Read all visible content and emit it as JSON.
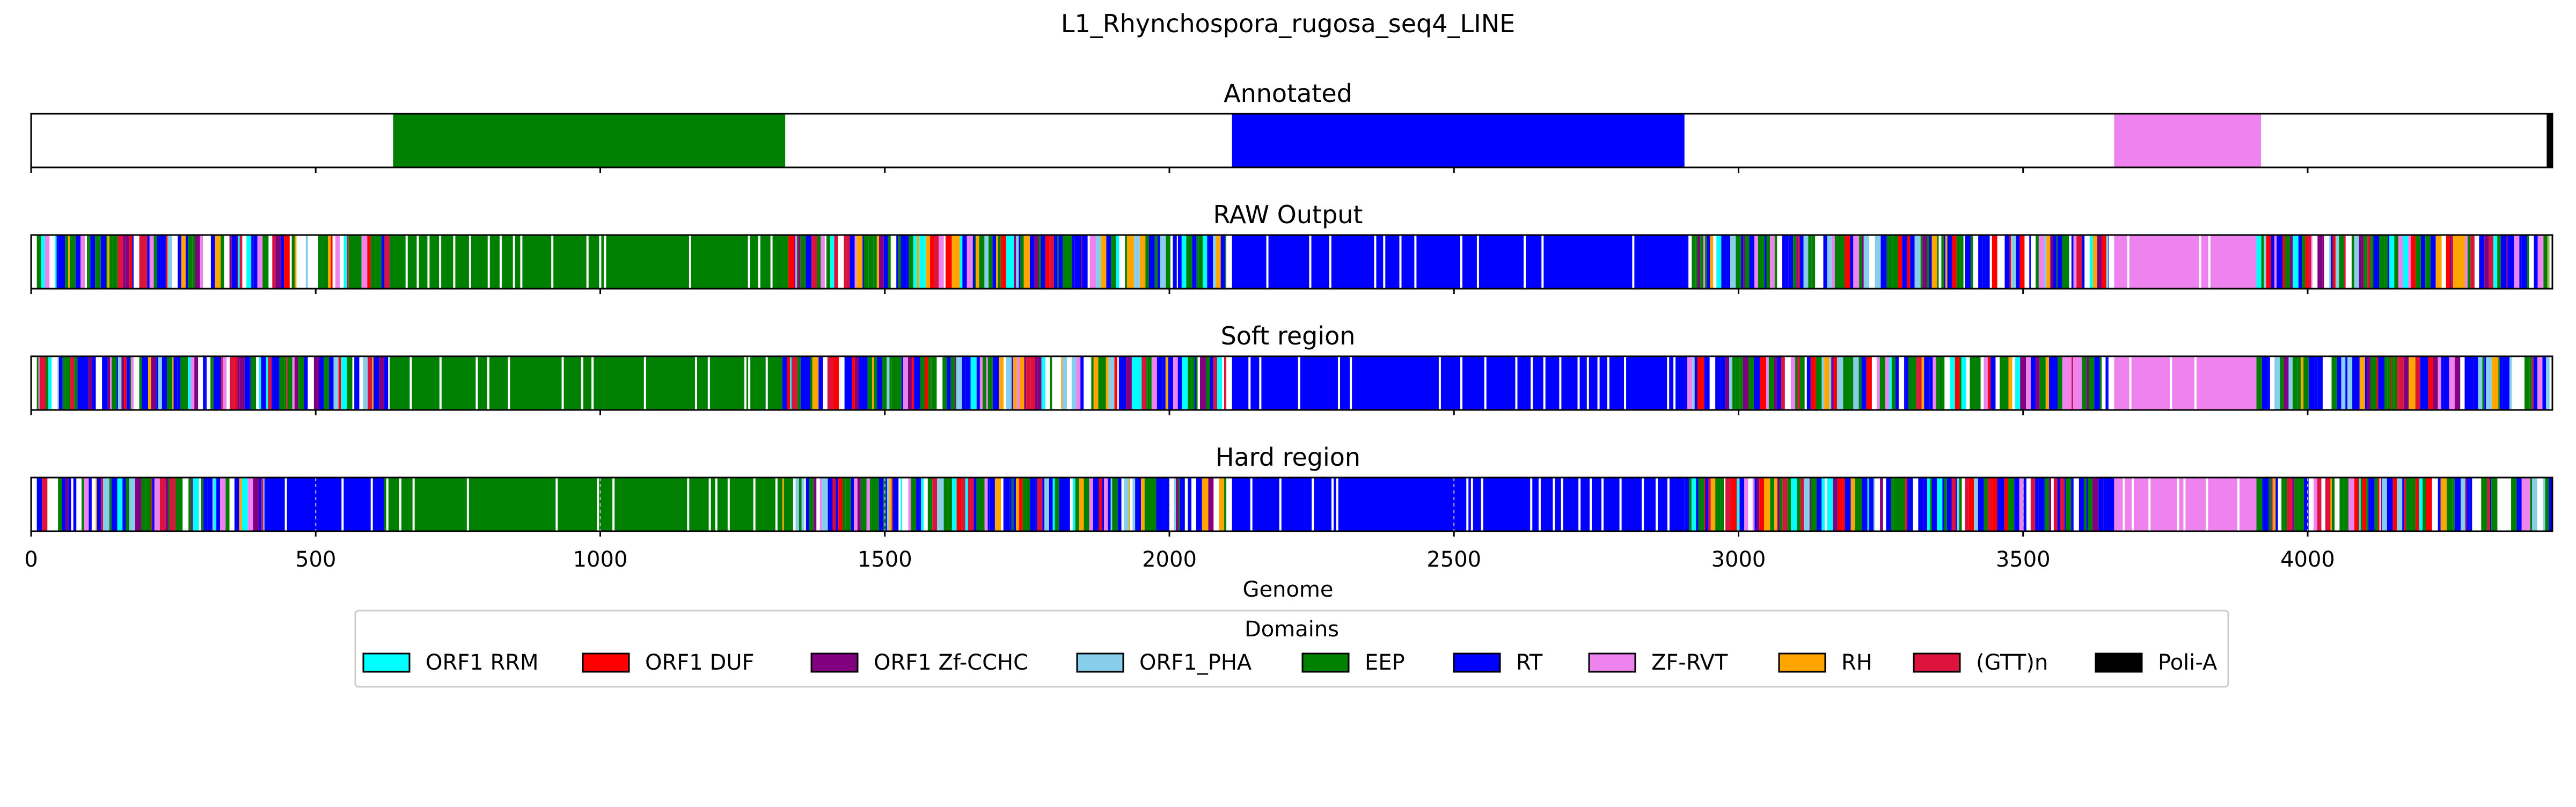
{
  "chart_data": {
    "type": "bar",
    "title": "L1_Rhynchospora_rugosa_seq4_LINE",
    "xlabel": "Genome",
    "xlim": [
      0,
      4430
    ],
    "xticks": [
      0,
      500,
      1000,
      1500,
      2000,
      2500,
      3000,
      3500,
      4000
    ],
    "xtick_labels": [
      "0",
      "500",
      "1000",
      "1500",
      "2000",
      "2500",
      "3000",
      "3500",
      "4000"
    ],
    "panels": [
      {
        "name": "Annotated",
        "segments": [
          {
            "domain": "EEP",
            "start": 636,
            "end": 1325
          },
          {
            "domain": "RT",
            "start": 2110,
            "end": 2905
          },
          {
            "domain": "ZF-RVT",
            "start": 3660,
            "end": 3918
          },
          {
            "domain": "Poli-A",
            "start": 4420,
            "end": 4430
          }
        ]
      },
      {
        "name": "RAW Output",
        "segments": [
          {
            "domain": "mixed",
            "start": 10,
            "end": 180
          },
          {
            "domain": "mixed",
            "start": 190,
            "end": 630
          },
          {
            "domain": "EEP",
            "start": 630,
            "end": 1320
          },
          {
            "domain": "mixed",
            "start": 1320,
            "end": 2100
          },
          {
            "domain": "RT",
            "start": 2110,
            "end": 2910
          },
          {
            "domain": "mixed",
            "start": 2910,
            "end": 3650
          },
          {
            "domain": "ZF-RVT",
            "start": 3660,
            "end": 3910
          },
          {
            "domain": "mixed",
            "start": 3910,
            "end": 4425
          }
        ]
      },
      {
        "name": "Soft region",
        "segments": [
          {
            "domain": "mixed",
            "start": 10,
            "end": 180
          },
          {
            "domain": "mixed",
            "start": 190,
            "end": 630
          },
          {
            "domain": "EEP",
            "start": 630,
            "end": 1320
          },
          {
            "domain": "mixed",
            "start": 1320,
            "end": 2100
          },
          {
            "domain": "RT",
            "start": 2110,
            "end": 2910
          },
          {
            "domain": "mixed",
            "start": 2910,
            "end": 3650
          },
          {
            "domain": "ZF-RVT",
            "start": 3660,
            "end": 3910
          },
          {
            "domain": "mixed",
            "start": 3910,
            "end": 4425
          }
        ]
      },
      {
        "name": "Hard region",
        "segments": [
          {
            "domain": "mixed",
            "start": 10,
            "end": 410
          },
          {
            "domain": "RT",
            "start": 410,
            "end": 620
          },
          {
            "domain": "EEP",
            "start": 620,
            "end": 1320
          },
          {
            "domain": "mixed",
            "start": 1320,
            "end": 2100
          },
          {
            "domain": "RT",
            "start": 2110,
            "end": 2905
          },
          {
            "domain": "mixed",
            "start": 2905,
            "end": 3660
          },
          {
            "domain": "ZF-RVT",
            "start": 3660,
            "end": 3910
          },
          {
            "domain": "mixed",
            "start": 3910,
            "end": 4430
          }
        ]
      }
    ],
    "legend": {
      "title": "Domains",
      "placement": "bottom-center",
      "entries": [
        {
          "label": "ORF1 RRM",
          "color": "#00ffff"
        },
        {
          "label": "ORF1 DUF",
          "color": "#ff0000"
        },
        {
          "label": "ORF1 Zf-CCHC",
          "color": "#800080"
        },
        {
          "label": "ORF1_PHA",
          "color": "#87ceeb"
        },
        {
          "label": "EEP",
          "color": "#008000"
        },
        {
          "label": "RT",
          "color": "#0000ff"
        },
        {
          "label": "ZF-RVT",
          "color": "#ee82ee"
        },
        {
          "label": "RH",
          "color": "#ffa500"
        },
        {
          "label": "(GTT)n",
          "color": "#dc143c"
        },
        {
          "label": "Poli-A",
          "color": "#000000"
        }
      ]
    }
  }
}
